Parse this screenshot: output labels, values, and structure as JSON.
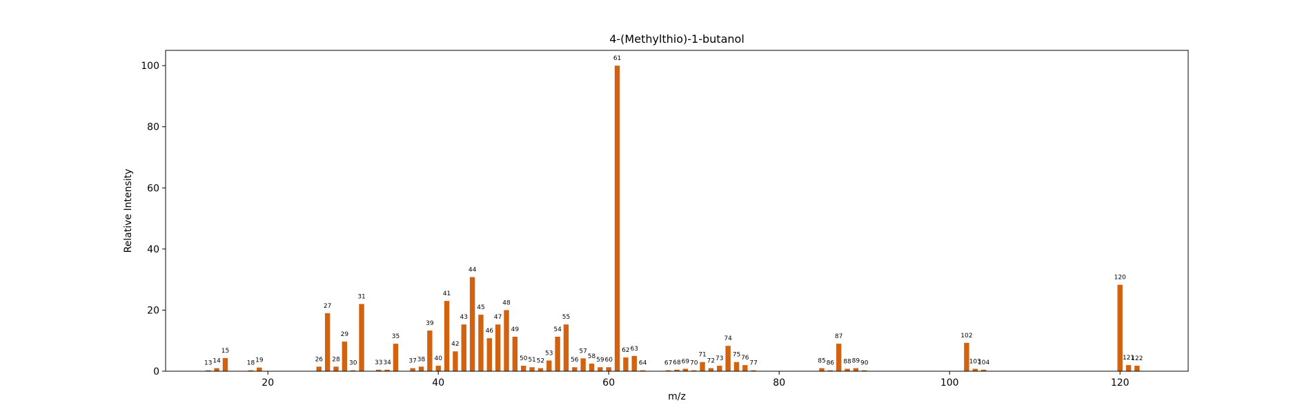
{
  "chart_data": {
    "type": "bar",
    "title": "4-(Methylthio)-1-butanol",
    "xlabel": "m/z",
    "ylabel": "Relative Intensity",
    "xlim": [
      8,
      128
    ],
    "ylim": [
      0,
      105
    ],
    "xticks": [
      20,
      40,
      60,
      80,
      100,
      120
    ],
    "yticks": [
      0,
      20,
      40,
      60,
      80,
      100
    ],
    "bar_color": "#d2620f",
    "grid": false,
    "x": [
      13,
      14,
      15,
      18,
      19,
      26,
      27,
      28,
      29,
      30,
      31,
      33,
      34,
      35,
      37,
      38,
      39,
      40,
      41,
      42,
      43,
      44,
      45,
      46,
      47,
      48,
      49,
      50,
      51,
      52,
      53,
      54,
      55,
      56,
      57,
      58,
      59,
      60,
      61,
      62,
      63,
      64,
      67,
      68,
      69,
      70,
      71,
      72,
      73,
      74,
      75,
      76,
      77,
      85,
      86,
      87,
      88,
      89,
      90,
      102,
      103,
      104,
      120,
      121,
      122
    ],
    "values": [
      0.3,
      1.0,
      4.3,
      0.3,
      1.2,
      1.5,
      19.0,
      1.5,
      9.7,
      0.3,
      22.0,
      0.5,
      0.5,
      9.0,
      1.0,
      1.5,
      13.3,
      1.8,
      23.0,
      6.5,
      15.3,
      30.8,
      18.5,
      10.8,
      15.3,
      20.0,
      11.3,
      1.8,
      1.3,
      1.0,
      3.5,
      11.3,
      15.3,
      1.3,
      4.2,
      2.5,
      1.3,
      1.3,
      100.0,
      4.5,
      5.0,
      0.3,
      0.3,
      0.5,
      0.8,
      0.3,
      3.0,
      1.0,
      1.8,
      8.3,
      3.0,
      2.0,
      0.3,
      1.0,
      0.3,
      9.0,
      0.8,
      1.0,
      0.3,
      9.3,
      0.8,
      0.5,
      28.3,
      2.0,
      1.8
    ],
    "labels": [
      "13",
      "14",
      "15",
      "18",
      "19",
      "26",
      "27",
      "28",
      "29",
      "30",
      "31",
      "33",
      "34",
      "35",
      "37",
      "38",
      "39",
      "40",
      "41",
      "42",
      "43",
      "44",
      "45",
      "46",
      "47",
      "48",
      "49",
      "50",
      "51",
      "52",
      "53",
      "54",
      "55",
      "56",
      "57",
      "58",
      "59",
      "60",
      "61",
      "62",
      "63",
      "64",
      "67",
      "68",
      "69",
      "70",
      "71",
      "72",
      "73",
      "74",
      "75",
      "76",
      "77",
      "85",
      "86",
      "87",
      "88",
      "89",
      "90",
      "102",
      "103",
      "104",
      "120",
      "121",
      "122"
    ]
  }
}
